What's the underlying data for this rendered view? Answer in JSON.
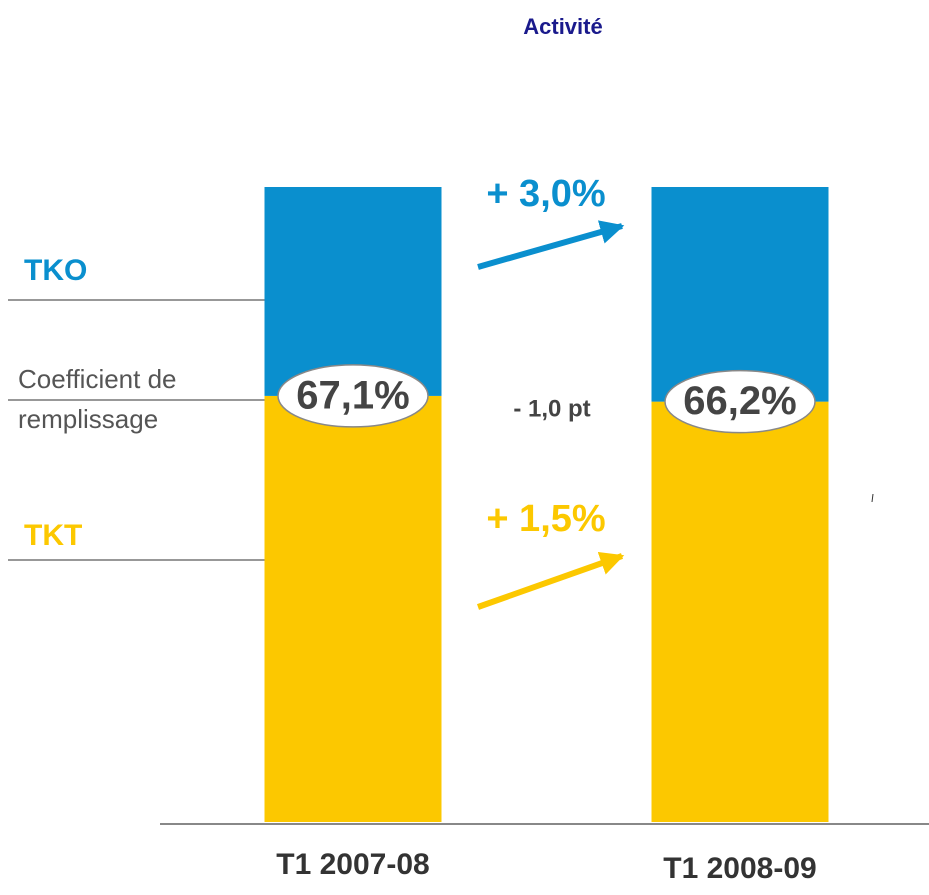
{
  "chart_data": {
    "type": "stacked_bar",
    "title": "Activité",
    "categories": [
      "T1 2007-08",
      "T1 2008-09"
    ],
    "series": [
      {
        "name": "TKT",
        "color": "#fcc800",
        "values": [
          67.1,
          66.2
        ],
        "value_labels": [
          "67,1%",
          "66,2%"
        ]
      },
      {
        "name": "TKO",
        "color": "#0a8fce",
        "values": [
          32.9,
          33.8
        ]
      }
    ],
    "ylim": [
      0,
      100
    ],
    "annotations": {
      "tko_change": "+ 3,0%",
      "load_factor_change": "- 1,0 pt",
      "tkt_change": "+ 1,5%",
      "load_factor_label": [
        "Coefficient de",
        "remplissage"
      ]
    }
  }
}
